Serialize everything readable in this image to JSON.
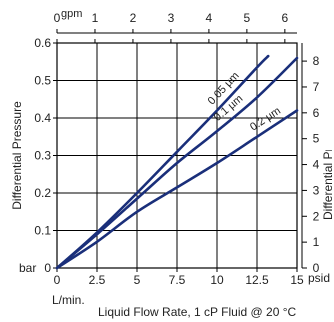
{
  "chart_data": {
    "type": "line",
    "title": "",
    "xlabel": "Liquid Flow Rate, 1 cP Fluid @ 20 °C",
    "xlabel_unit": "L/min.",
    "xlim": [
      0,
      15
    ],
    "xticks": [
      0,
      2.5,
      5,
      7.5,
      10,
      12.5,
      15
    ],
    "xtick_labels": [
      "0",
      "2.5",
      "5",
      "7.5",
      "10",
      "12.5",
      "15"
    ],
    "ylabel": "Differential Pressure",
    "ylabel_unit": "bar",
    "ylim": [
      0,
      0.6
    ],
    "yticks": [
      0,
      0.1,
      0.2,
      0.3,
      0.4,
      0.5,
      0.6
    ],
    "ytick_labels": [
      "0",
      "0.1",
      "0.2",
      "0.3",
      "0.4",
      "0.5",
      "0.6"
    ],
    "x2label_unit": "gpm",
    "x2lim": [
      0,
      6.32
    ],
    "x2ticks": [
      0,
      1,
      2,
      3,
      4,
      5,
      6
    ],
    "x2tick_labels": [
      "0",
      "1",
      "2",
      "3",
      "4",
      "5",
      "6"
    ],
    "y2label": "Differential Pressure",
    "y2label_unit": "psid",
    "y2lim": [
      0,
      8.7
    ],
    "y2ticks": [
      0,
      1,
      2,
      3,
      4,
      5,
      6,
      7,
      8
    ],
    "y2tick_labels": [
      "0",
      "1",
      "2",
      "3",
      "4",
      "5",
      "6",
      "7",
      "8"
    ],
    "grid": true,
    "line_color": "#1a2f7a",
    "series": [
      {
        "name": "0.05 µm",
        "x": [
          0,
          2.5,
          5,
          7.5,
          10,
          12.5,
          13.2
        ],
        "y": [
          0,
          0.095,
          0.2,
          0.31,
          0.42,
          0.535,
          0.565
        ]
      },
      {
        "name": "0.1 µm",
        "x": [
          0,
          2.5,
          5,
          7.5,
          10,
          12.5,
          15
        ],
        "y": [
          0,
          0.09,
          0.185,
          0.28,
          0.365,
          0.455,
          0.56
        ]
      },
      {
        "name": "0.2 µm",
        "x": [
          0,
          2.5,
          5,
          7.5,
          10,
          12.5,
          15
        ],
        "y": [
          0,
          0.07,
          0.15,
          0.215,
          0.28,
          0.35,
          0.42
        ]
      }
    ]
  }
}
